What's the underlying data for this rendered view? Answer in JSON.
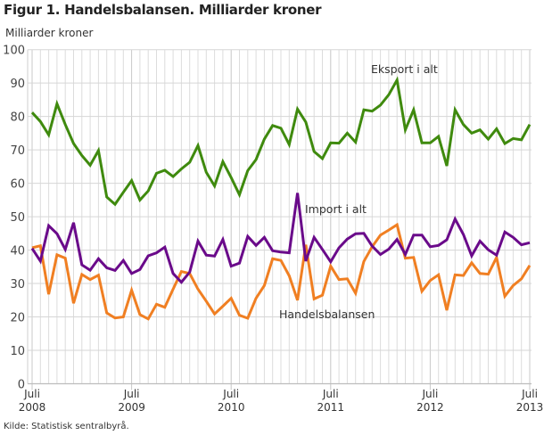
{
  "title": "Figur 1. Handelsbalansen. Milliarder kroner",
  "source": "Kilde: Statistisk sentralbyrå.",
  "chart_data": {
    "type": "line",
    "title": "Figur 1. Handelsbalansen. Milliarder kroner",
    "ylabel": "Milliarder kroner",
    "xlabel": "",
    "frequency": "monthly",
    "x_range": [
      "2008-07",
      "2013-07"
    ],
    "ylim": [
      0,
      100
    ],
    "yticks": [
      0,
      10,
      20,
      30,
      40,
      50,
      60,
      70,
      80,
      90,
      100
    ],
    "xticks": [
      {
        "month": "Juli",
        "year": "2008"
      },
      {
        "month": "Juli",
        "year": "2009"
      },
      {
        "month": "Juli",
        "year": "2010"
      },
      {
        "month": "Juli",
        "year": "2011"
      },
      {
        "month": "Juli",
        "year": "2012"
      },
      {
        "month": "Juli",
        "year": "2013"
      }
    ],
    "grid": true,
    "legend": "inline labels",
    "series": [
      {
        "name": "Eksport i alt",
        "color": "#3f8a0e",
        "values": [
          81.2,
          78.5,
          74.5,
          83.8,
          77.6,
          71.9,
          68.3,
          65.4,
          69.8,
          55.9,
          53.7,
          57.3,
          60.8,
          55.0,
          57.7,
          63.0,
          63.9,
          62.0,
          64.3,
          66.3,
          71.3,
          63.3,
          59.2,
          66.5,
          61.7,
          56.6,
          63.8,
          67.1,
          73.2,
          77.3,
          76.5,
          71.6,
          82.2,
          78.3,
          69.5,
          67.4,
          72.1,
          72.0,
          75.0,
          72.3,
          82.0,
          81.6,
          83.4,
          86.5,
          90.9,
          76.0,
          82.0,
          72.1,
          72.1,
          74.0,
          65.2,
          82.0,
          77.6,
          75.0,
          76.0,
          73.2,
          76.3,
          71.9,
          73.4,
          73.0,
          77.6
        ]
      },
      {
        "name": "Import i alt",
        "color": "#6a0a8a",
        "values": [
          40.5,
          36.7,
          47.3,
          44.9,
          40.2,
          48.2,
          35.6,
          34.0,
          37.4,
          34.7,
          33.9,
          36.9,
          33.0,
          34.2,
          38.3,
          39.2,
          40.9,
          33.0,
          30.4,
          33.4,
          42.7,
          38.5,
          38.2,
          43.2,
          35.2,
          36.1,
          44.1,
          41.4,
          43.8,
          39.8,
          39.4,
          39.2,
          57.1,
          36.7,
          43.8,
          40.2,
          36.5,
          40.7,
          43.3,
          44.9,
          45.0,
          41.2,
          38.7,
          40.3,
          43.2,
          38.7,
          44.5,
          44.5,
          41.0,
          41.4,
          43.1,
          49.3,
          44.7,
          38.3,
          42.7,
          40.1,
          38.5,
          45.4,
          43.8,
          41.6,
          42.2
        ]
      },
      {
        "name": "Handelsbalansen",
        "color": "#f07f22",
        "values": [
          40.7,
          41.3,
          26.8,
          38.6,
          37.6,
          24.1,
          32.7,
          31.2,
          32.5,
          21.2,
          19.7,
          20.0,
          28.0,
          20.7,
          19.4,
          23.8,
          22.9,
          28.3,
          33.6,
          33.0,
          28.3,
          24.7,
          20.9,
          23.2,
          25.6,
          20.5,
          19.6,
          25.6,
          29.4,
          37.4,
          36.9,
          32.3,
          25.0,
          41.6,
          25.4,
          26.5,
          35.2,
          31.2,
          31.4,
          27.1,
          36.6,
          41.0,
          44.5,
          46.0,
          47.6,
          37.6,
          37.8,
          27.7,
          30.9,
          32.6,
          22.0,
          32.6,
          32.4,
          36.2,
          33.0,
          32.8,
          37.8,
          26.2,
          29.4,
          31.4,
          35.4
        ]
      }
    ]
  }
}
